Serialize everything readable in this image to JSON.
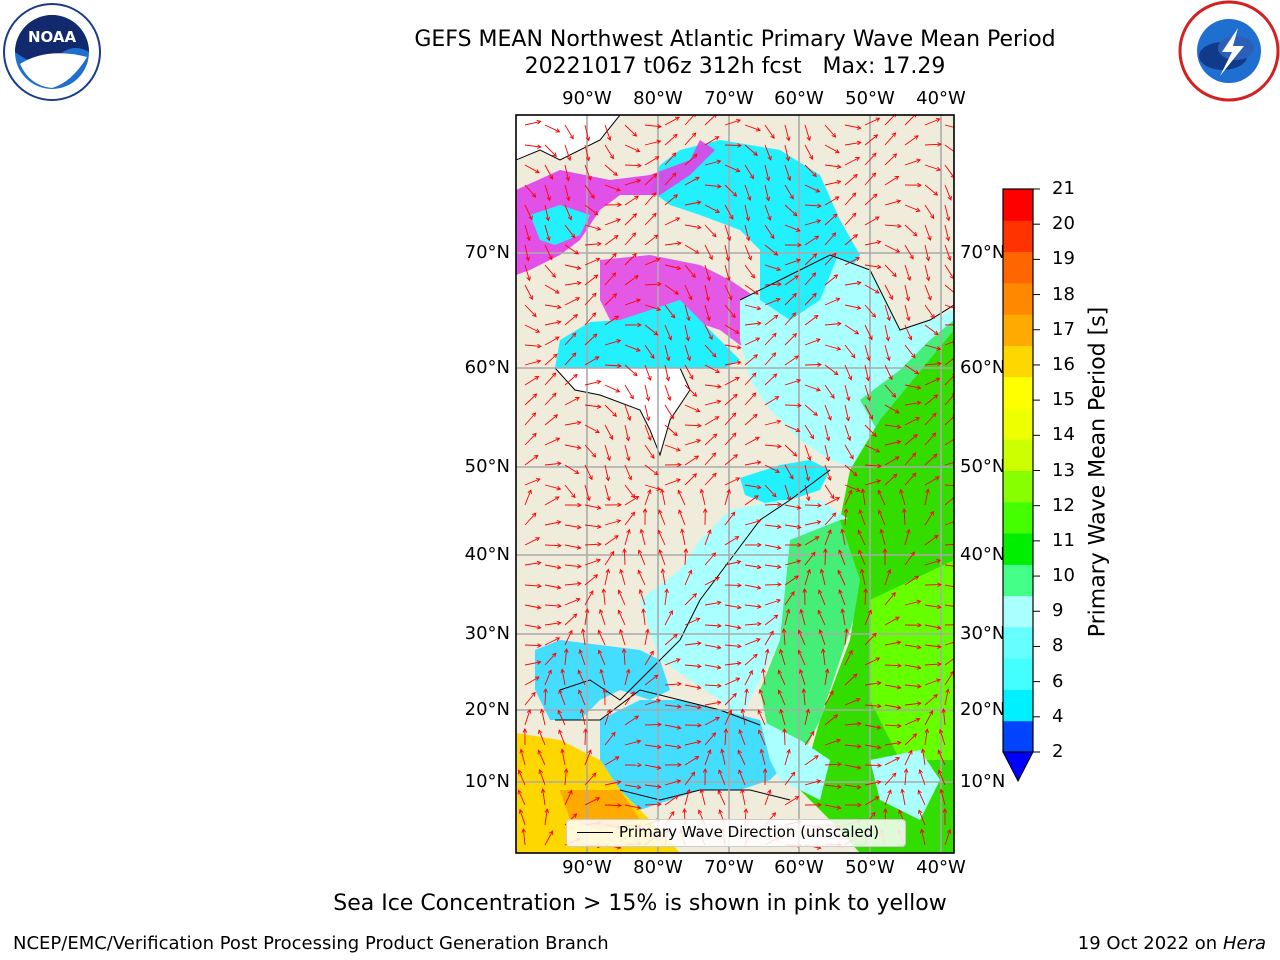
{
  "header": {
    "title_line1": "GEFS MEAN Northwest Atlantic Primary Wave Mean Period",
    "title_line2": "20221017 t06z 312h fcst   Max: 17.29"
  },
  "logos": {
    "left": "noaa-logo",
    "right": "national-weather-service-logo"
  },
  "map": {
    "lon_ticks": [
      "90°W",
      "80°W",
      "70°W",
      "60°W",
      "50°W",
      "40°W"
    ],
    "lat_ticks": [
      "70°N",
      "60°N",
      "50°N",
      "40°N",
      "30°N",
      "20°N",
      "10°N"
    ],
    "land_color": "#efecdc",
    "vector_color": "#ff0000",
    "gridlines": true,
    "legend_label": "Primary Wave Direction (unscaled)"
  },
  "colorbar": {
    "label": "Primary Wave Mean Period [s]",
    "ticks": [
      "21",
      "20",
      "19",
      "18",
      "17",
      "16",
      "15",
      "14",
      "13",
      "12",
      "11",
      "10",
      "9",
      "8",
      "6",
      "4",
      "2"
    ],
    "colors_bottom_to_top": [
      "#0044ff",
      "#00f0ff",
      "#44ffff",
      "#66ffff",
      "#aaffff",
      "#44ff88",
      "#00ee00",
      "#44ff00",
      "#88ff00",
      "#ccff00",
      "#eeff00",
      "#ffff00",
      "#ffd700",
      "#ffaa00",
      "#ff8800",
      "#ff6600",
      "#ff3300",
      "#ff0000"
    ],
    "extend_color": "#0000ff"
  },
  "footer": {
    "ice_note": "Sea Ice Concentration > 15% is shown in pink to yellow",
    "left": "NCEP/EMC/Verification Post Processing Product Generation Branch",
    "right_date": "19 Oct 2022 on ",
    "right_machine": "Hera"
  }
}
